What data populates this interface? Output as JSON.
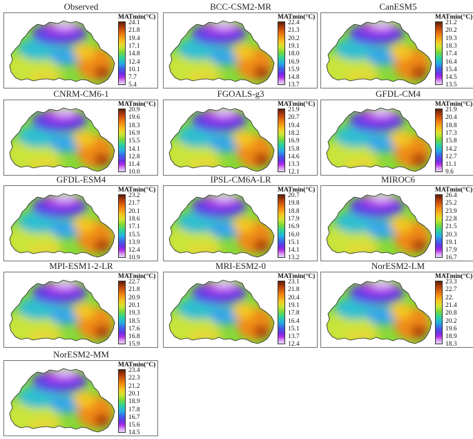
{
  "legend_title": "MATmin(°C)",
  "panels": [
    {
      "title": "Observed",
      "ticks": [
        "24.1",
        "21.8",
        "19.4",
        "17.1",
        "14.8",
        "12.4",
        "10.1",
        "7.7",
        "5.4"
      ]
    },
    {
      "title": "BCC-CSM2-MR",
      "ticks": [
        "22.4",
        "21.3",
        "20.2",
        "19.1",
        "18.0",
        "16.9",
        "15.9",
        "14.8",
        "13.7"
      ]
    },
    {
      "title": "CanESM5",
      "ticks": [
        "21.2",
        "20.2",
        "19.3",
        "18.3",
        "17.4",
        "16.4",
        "15.4",
        "14.5",
        "13.5"
      ]
    },
    {
      "title": "CNRM-CM6-1",
      "ticks": [
        "20.9",
        "19.6",
        "18.3",
        "16.9",
        "15.5",
        "14.1",
        "12.8",
        "11.4",
        "10.0"
      ]
    },
    {
      "title": "FGOALS-g3",
      "ticks": [
        "21.9",
        "20.7",
        "19.4",
        "18.2",
        "16.9",
        "15.8",
        "14.6",
        "13.3",
        "12.1"
      ]
    },
    {
      "title": "GFDL-CM4",
      "ticks": [
        "21.9",
        "20.4",
        "18.8",
        "17.3",
        "15.8",
        "14.2",
        "12.7",
        "11.1",
        "9.6"
      ]
    },
    {
      "title": "GFDL-ESM4",
      "ticks": [
        "23.2",
        "21.7",
        "20.1",
        "18.6",
        "17.1",
        "15.5",
        "13.9",
        "12.4",
        "10.9"
      ]
    },
    {
      "title": "IPSL-CM6A-LR",
      "ticks": [
        "20.7",
        "19.8",
        "18.8",
        "17.9",
        "16.9",
        "16.0",
        "15.1",
        "14.1",
        "13.2"
      ]
    },
    {
      "title": "MIROC6",
      "ticks": [
        "26.4",
        "25.2",
        "23.9",
        "22.8",
        "21.5",
        "20.3",
        "19.1",
        "17.9",
        "16.7"
      ]
    },
    {
      "title": "MPI-ESM1-2-LR",
      "ticks": [
        "22.7",
        "21.8",
        "20.9",
        "20.1",
        "19.3",
        "18.5",
        "17.6",
        "16.8",
        "15.9"
      ]
    },
    {
      "title": "MRI-ESM2-0",
      "ticks": [
        "23.1",
        "21.8",
        "20.4",
        "19.1",
        "17.8",
        "16.4",
        "15.1",
        "13.7",
        "12.4"
      ]
    },
    {
      "title": "NorESM2-LM",
      "ticks": [
        "23.3",
        "22.7",
        "22.",
        "21.4",
        "20.8",
        "20.2",
        "19.6",
        "18.9",
        "18.3"
      ]
    },
    {
      "title": "NorESM2-MM",
      "ticks": [
        "23.4",
        "22.3",
        "21.2",
        "20.1",
        "18.9",
        "17.8",
        "16.7",
        "15.6",
        "14.5"
      ]
    }
  ]
}
